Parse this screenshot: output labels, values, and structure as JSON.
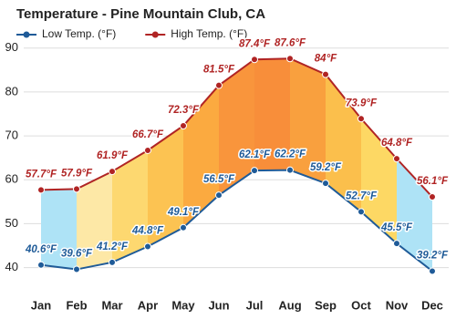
{
  "chart_data": {
    "type": "line",
    "title": "Temperature - Pine Mountain Club, CA",
    "categories": [
      "Jan",
      "Feb",
      "Mar",
      "Apr",
      "May",
      "Jun",
      "Jul",
      "Aug",
      "Sep",
      "Oct",
      "Nov",
      "Dec"
    ],
    "series": [
      {
        "name": "Low Temp. (°F)",
        "color": "#1f5b98",
        "values": [
          40.6,
          39.6,
          41.2,
          44.8,
          49.1,
          56.5,
          62.1,
          62.2,
          59.2,
          52.7,
          45.5,
          39.2
        ],
        "value_labels": [
          "40.6°F",
          "39.6°F",
          "41.2°F",
          "44.8°F",
          "49.1°F",
          "56.5°F",
          "62.1°F",
          "62.2°F",
          "59.2°F",
          "52.7°F",
          "45.5°F",
          "39.2°F"
        ]
      },
      {
        "name": "High Temp. (°F)",
        "color": "#b02424",
        "values": [
          57.7,
          57.9,
          61.9,
          66.7,
          72.3,
          81.5,
          87.4,
          87.6,
          84,
          73.9,
          64.8,
          56.1
        ],
        "value_labels": [
          "57.7°F",
          "57.9°F",
          "61.9°F",
          "66.7°F",
          "72.3°F",
          "81.5°F",
          "87.4°F",
          "87.6°F",
          "84°F",
          "73.9°F",
          "64.8°F",
          "56.1°F"
        ]
      }
    ],
    "band_colors": [
      "#aee3f6",
      "#fde8a6",
      "#fdd870",
      "#fcc352",
      "#fbaa40",
      "#f9953c",
      "#f88e3a",
      "#f9a03e",
      "#fbbf4c",
      "#fdd864",
      "#aee3f6"
    ],
    "ylim": [
      36.6,
      91.6
    ],
    "yticks": [
      40,
      50,
      60,
      70,
      80,
      90
    ],
    "grid": true,
    "legend": "top-left"
  }
}
